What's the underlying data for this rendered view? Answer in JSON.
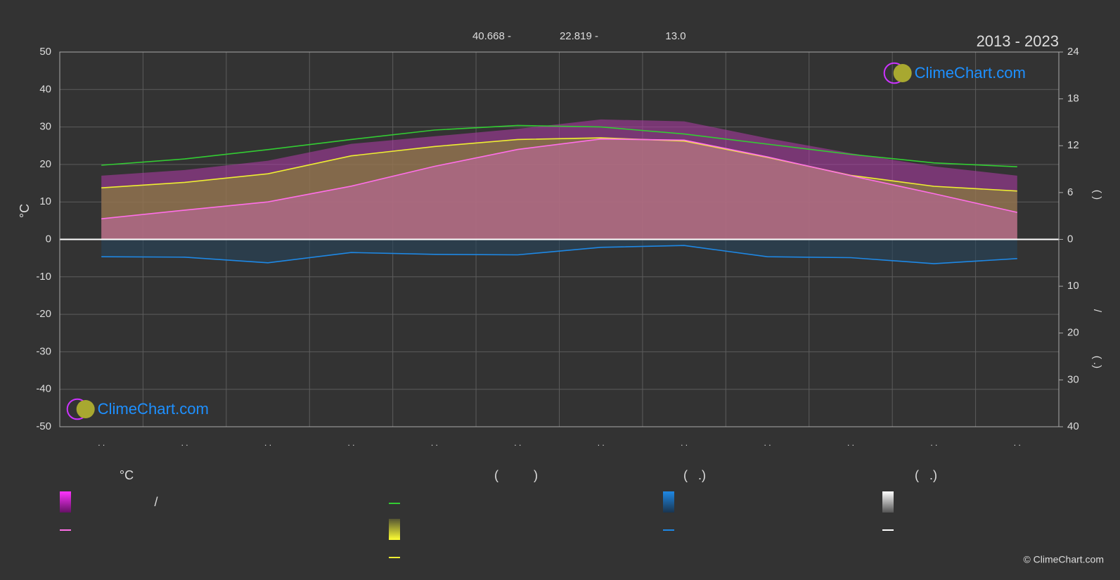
{
  "chart_data": {
    "type": "line",
    "title": "2013 - 2023",
    "top_labels": [
      "40.668 -",
      "22.819 -",
      "13.0"
    ],
    "ylabel": "°C",
    "y2label_parts": [
      "(        )",
      "/",
      "(  .)"
    ],
    "categories": [
      ". .",
      ". .",
      ". .",
      ". .",
      ". .",
      ". .",
      ". .",
      ". .",
      ". .",
      ". .",
      ". .",
      ". ."
    ],
    "ylim": [
      -50,
      50
    ],
    "yticks": [
      -50,
      -40,
      -30,
      -20,
      -10,
      0,
      10,
      20,
      30,
      40,
      50
    ],
    "y2lim": [
      0,
      24
    ],
    "y2ticks": [
      0,
      6,
      12,
      18,
      24
    ],
    "y3lim": [
      0,
      40
    ],
    "y3ticks": [
      10,
      20,
      30,
      40
    ],
    "grid": true,
    "areas": [
      {
        "color": "#b03aa8",
        "values": [
          17,
          18.5,
          21,
          25.5,
          27.5,
          29.5,
          32,
          31.5,
          27,
          23,
          19.5,
          17
        ]
      }
    ],
    "series": [
      {
        "color": "#33cc33",
        "axis": "y2",
        "values": [
          9.5,
          10.3,
          11.5,
          12.8,
          14.0,
          14.6,
          14.4,
          13.5,
          12.2,
          10.9,
          9.8,
          9.3
        ]
      },
      {
        "color": "#eeee33",
        "axis": "y2",
        "fill": "#8a8a30",
        "values": [
          6.6,
          7.3,
          8.4,
          10.7,
          11.9,
          12.8,
          13.0,
          12.6,
          10.5,
          8.2,
          6.8,
          6.2
        ]
      },
      {
        "color": "#ff6fe8",
        "axis": "y",
        "fill": "#c0679e",
        "values": [
          5.5,
          7.8,
          10.0,
          14.2,
          19.5,
          24.0,
          26.8,
          26.5,
          22.0,
          17.0,
          12.2,
          7.2
        ]
      },
      {
        "color": "#1e88e5",
        "axis": "y3",
        "fill": "#27445c",
        "values": [
          3.7,
          3.8,
          5.0,
          2.8,
          3.2,
          3.3,
          1.7,
          1.3,
          3.7,
          3.9,
          5.2,
          4.1
        ]
      }
    ],
    "legend_texts": [
      "°C",
      "/",
      "(          )",
      "(   .)",
      "(   .)"
    ],
    "logo": "ClimeChart.com",
    "copyright": "© ClimeChart.com"
  }
}
